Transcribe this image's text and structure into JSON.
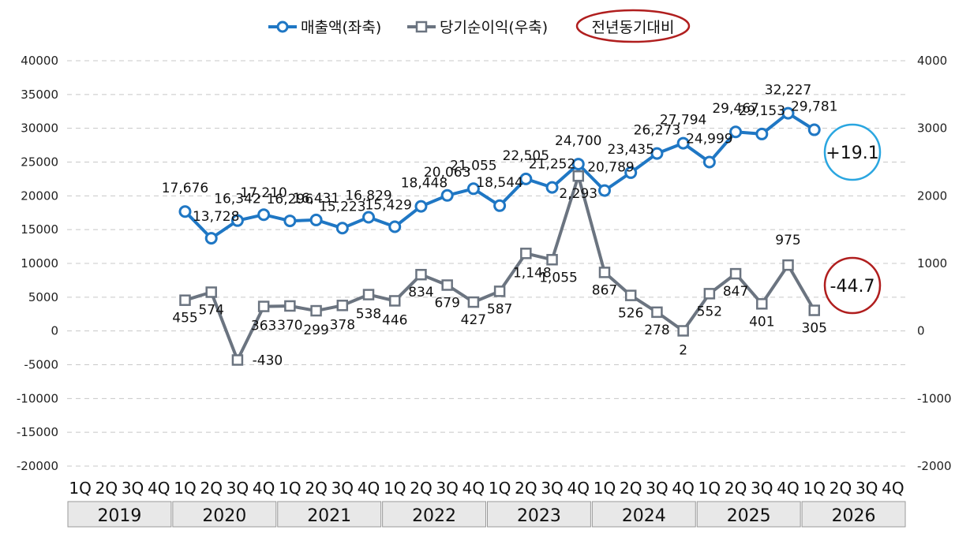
{
  "chart_data": {
    "type": "line",
    "categories": [
      "1Q",
      "2Q",
      "3Q",
      "4Q",
      "1Q",
      "2Q",
      "3Q",
      "4Q",
      "1Q",
      "2Q",
      "3Q",
      "4Q",
      "1Q",
      "2Q",
      "3Q",
      "4Q",
      "1Q",
      "2Q",
      "3Q",
      "4Q",
      "1Q",
      "2Q",
      "3Q",
      "4Q",
      "1Q",
      "2Q",
      "3Q",
      "4Q",
      "1Q",
      "2Q",
      "3Q",
      "4Q"
    ],
    "years": [
      "2019",
      "2020",
      "2021",
      "2022",
      "2023",
      "2024",
      "2025",
      "2026"
    ],
    "series": [
      {
        "name": "매출액(좌축)",
        "axis": "left",
        "color": "#1f77c4",
        "values": [
          null,
          null,
          null,
          null,
          17676,
          13728,
          16342,
          17210,
          16296,
          16431,
          15223,
          16829,
          15429,
          18448,
          20063,
          21055,
          18544,
          22505,
          21252,
          24700,
          20789,
          23435,
          26273,
          27794,
          24999,
          29467,
          29153,
          32227,
          29781,
          null,
          null,
          null
        ],
        "labels": [
          null,
          null,
          null,
          null,
          "17,676",
          "13,728",
          "16,342",
          "17,210",
          "16,296",
          "16,431",
          "15,223",
          "16,829",
          "15,429",
          "18,448",
          "20,063",
          "21,055",
          "18,544",
          "22,505",
          "21,252",
          "24,700",
          "20,789",
          "23,435",
          "26,273",
          "27,794",
          "24,999",
          "29,467",
          "29,153",
          "32,227",
          "29,781",
          null,
          null,
          null
        ]
      },
      {
        "name": "당기순이익(우축)",
        "axis": "right",
        "color": "#6b7480",
        "values": [
          null,
          null,
          null,
          null,
          455,
          574,
          -430,
          363,
          370,
          299,
          378,
          538,
          446,
          834,
          679,
          427,
          587,
          1148,
          1055,
          2293,
          867,
          526,
          278,
          2,
          552,
          847,
          401,
          975,
          305,
          null,
          null,
          null
        ],
        "labels": [
          null,
          null,
          null,
          null,
          "455",
          "574",
          "-430",
          "363",
          "370",
          "299",
          "378",
          "538",
          "446",
          "834",
          "679",
          "427",
          "587",
          "1,148",
          "1,055",
          "2,293",
          "867",
          "526",
          "278",
          "2",
          "552",
          "847",
          "401",
          "975",
          "305",
          null,
          null,
          null
        ]
      }
    ],
    "y_left": {
      "min": -20000,
      "max": 40000,
      "ticks": [
        "40000",
        "35000",
        "30000",
        "25000",
        "20000",
        "15000",
        "10000",
        "5000",
        "0",
        "-5000",
        "-10000",
        "-15000",
        "-20000"
      ]
    },
    "y_right": {
      "min": -2000,
      "max": 4000,
      "ticks": [
        "4000",
        "3000",
        "2000",
        "1000",
        "0",
        "-1000",
        "-2000"
      ]
    },
    "grid": true,
    "legend_position": "top-center",
    "legend_extra": {
      "label": "전년동기대비",
      "ring_color": "#b01e1e"
    },
    "badges": [
      {
        "text": "+19.1",
        "ring_color": "#2aa6e0"
      },
      {
        "text": "-44.7",
        "ring_color": "#b01e1e"
      }
    ]
  }
}
